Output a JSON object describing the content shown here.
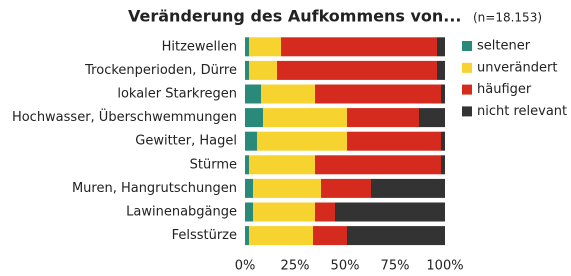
{
  "chart_data": {
    "type": "bar",
    "orientation": "horizontal",
    "stacked": true,
    "title": "Veränderung des Aufkommens von...",
    "subtitle": "(n=18.153)",
    "categories": [
      "Hitzewellen",
      "Trockenperioden, Dürre",
      "lokaler Starkregen",
      "Hochwasser, Überschwemmungen",
      "Gewitter, Hagel",
      "Stürme",
      "Muren, Hangrutschungen",
      "Lawinenabgänge",
      "Felsstürze"
    ],
    "series": [
      {
        "name": "seltener",
        "color": "#2a8a7a",
        "values": [
          2,
          2,
          8,
          9,
          6,
          2,
          4,
          4,
          2
        ]
      },
      {
        "name": "unverändert",
        "color": "#f7d330",
        "values": [
          16,
          14,
          27,
          42,
          45,
          33,
          34,
          31,
          32
        ]
      },
      {
        "name": "häufiger",
        "color": "#d42b1e",
        "values": [
          78,
          80,
          63,
          36,
          47,
          63,
          25,
          10,
          17
        ]
      },
      {
        "name": "nicht relevant",
        "color": "#333333",
        "values": [
          4,
          4,
          2,
          13,
          2,
          2,
          37,
          55,
          49
        ]
      }
    ],
    "xlim": [
      0,
      100
    ],
    "xticks": [
      {
        "value": 0,
        "label": "0%"
      },
      {
        "value": 25,
        "label": "25%"
      },
      {
        "value": 50,
        "label": "50%"
      },
      {
        "value": 75,
        "label": "75%"
      },
      {
        "value": 100,
        "label": "100%"
      }
    ],
    "legend": "right"
  }
}
